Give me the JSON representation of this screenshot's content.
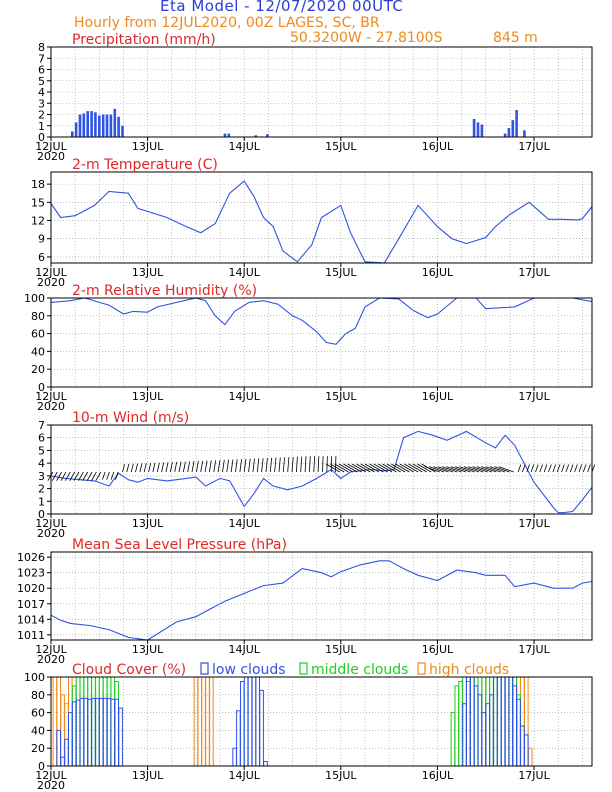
{
  "header": {
    "title": "Eta Model - 12/07/2020 00UTC",
    "subtitle": "Hourly from 12JUL2020, 00Z  LAGES, SC, BR",
    "coords": "50.3200W - 27.8100S",
    "elevation": "845  m"
  },
  "colors": {
    "title": "#2a3bd6",
    "orange": "#ee8a1c",
    "red": "#e02828",
    "blue": "#2e54e6",
    "green": "#22cc22",
    "black": "#000000"
  },
  "x_axis": {
    "range_days": [
      0,
      5.6
    ],
    "ticks": [
      {
        "day": 0,
        "label": "12JUL"
      },
      {
        "day": 1,
        "label": "13JUL"
      },
      {
        "day": 2,
        "label": "14JUL"
      },
      {
        "day": 3,
        "label": "15JUL"
      },
      {
        "day": 4,
        "label": "16JUL"
      },
      {
        "day": 5,
        "label": "17JUL"
      }
    ],
    "year": "2020"
  },
  "chart_data": [
    {
      "type": "bar",
      "title": "Precipitation (mm/h)",
      "ylim": [
        0,
        8
      ],
      "yticks": [
        0,
        1,
        2,
        3,
        4,
        5,
        6,
        7,
        8
      ],
      "x": [
        0.22,
        0.26,
        0.3,
        0.34,
        0.38,
        0.42,
        0.46,
        0.5,
        0.54,
        0.58,
        0.62,
        0.66,
        0.7,
        0.74,
        1.8,
        1.84,
        2.12,
        2.24,
        4.38,
        4.42,
        4.46,
        4.7,
        4.74,
        4.78,
        4.82,
        4.9
      ],
      "values": [
        0.5,
        1.3,
        2,
        2.1,
        2.3,
        2.3,
        2.2,
        1.9,
        2,
        2,
        2,
        2.5,
        1.8,
        1,
        0.3,
        0.3,
        0.15,
        0.25,
        1.6,
        1.3,
        1.1,
        0.3,
        0.8,
        1.5,
        2.4,
        0.6
      ]
    },
    {
      "type": "line",
      "title": "2-m Temperature (C)",
      "ylim": [
        5,
        20
      ],
      "yticks": [
        6,
        9,
        12,
        15,
        18
      ],
      "x": [
        0,
        0.1,
        0.25,
        0.45,
        0.6,
        0.8,
        0.9,
        1.2,
        1.4,
        1.55,
        1.7,
        1.85,
        2.0,
        2.1,
        2.2,
        2.3,
        2.4,
        2.55,
        2.7,
        2.8,
        3.0,
        3.1,
        3.25,
        3.45,
        3.6,
        3.8,
        4.0,
        4.15,
        4.3,
        4.5,
        4.6,
        4.75,
        4.85,
        4.95,
        5.05,
        5.15,
        5.3,
        5.45,
        5.5,
        5.6
      ],
      "values": [
        14.8,
        12.5,
        12.8,
        14.5,
        16.8,
        16.5,
        14,
        12.5,
        11,
        10,
        11.5,
        16.5,
        18.5,
        16,
        12.5,
        11,
        7,
        5.2,
        8,
        12.5,
        14.5,
        10,
        5.2,
        5,
        9,
        14.5,
        11,
        9,
        8.2,
        9.2,
        11,
        13,
        14,
        15,
        13.6,
        12.2,
        12.2,
        12.1,
        12.3,
        14.3
      ]
    },
    {
      "type": "line",
      "title": "2-m Relative Humidity (%)",
      "ylim": [
        0,
        100
      ],
      "yticks": [
        0,
        20,
        40,
        60,
        80,
        100
      ],
      "x": [
        0,
        0.2,
        0.35,
        0.5,
        0.6,
        0.75,
        0.85,
        1.0,
        1.1,
        1.5,
        1.6,
        1.7,
        1.8,
        1.9,
        2.05,
        2.2,
        2.35,
        2.5,
        2.6,
        2.75,
        2.85,
        2.95,
        3.05,
        3.15,
        3.25,
        3.4,
        3.6,
        3.75,
        3.9,
        4.0,
        4.2,
        4.4,
        4.5,
        4.8,
        5.0,
        5.4,
        5.55,
        5.6
      ],
      "values": [
        95,
        97,
        100,
        95,
        92,
        82,
        85,
        84,
        90,
        100,
        97,
        80,
        70,
        85,
        95,
        97,
        93,
        80,
        75,
        62,
        50,
        48,
        60,
        66,
        90,
        100,
        99,
        86,
        78,
        82,
        100,
        100,
        88,
        90,
        100,
        100,
        97,
        96
      ]
    },
    {
      "type": "line",
      "title": "10-m Wind (m/s)",
      "ylim": [
        0,
        7
      ],
      "yticks": [
        0,
        1,
        2,
        3,
        4,
        5,
        6,
        7
      ],
      "x": [
        0,
        0.15,
        0.3,
        0.45,
        0.6,
        0.7,
        0.8,
        0.9,
        1.0,
        1.2,
        1.4,
        1.5,
        1.6,
        1.75,
        1.85,
        2.0,
        2.1,
        2.2,
        2.3,
        2.45,
        2.6,
        2.75,
        2.9,
        3.0,
        3.1,
        3.3,
        3.45,
        3.55,
        3.65,
        3.8,
        3.95,
        4.1,
        4.3,
        4.5,
        4.6,
        4.7,
        4.8,
        5.0,
        5.2,
        5.25,
        5.3,
        5.4,
        5.5,
        5.6
      ],
      "values": [
        3,
        2.8,
        2.7,
        2.6,
        2.2,
        3.2,
        2.7,
        2.5,
        2.8,
        2.6,
        2.8,
        2.9,
        2.2,
        2.8,
        2.6,
        0.6,
        1.6,
        2.8,
        2.2,
        1.9,
        2.2,
        2.8,
        3.5,
        2.8,
        3.3,
        3.5,
        3.4,
        3.5,
        6,
        6.5,
        6.2,
        5.8,
        6.5,
        5.6,
        5.2,
        6.2,
        5.4,
        2.5,
        0.5,
        0.1,
        0.1,
        0.2,
        1.1,
        2.1
      ]
    },
    {
      "type": "line",
      "title": "Mean Sea Level Pressure (hPa)",
      "ylim": [
        1010,
        1027
      ],
      "yticks": [
        1011,
        1014,
        1017,
        1020,
        1023,
        1026
      ],
      "x": [
        0,
        0.1,
        0.2,
        0.4,
        0.6,
        0.8,
        1.0,
        1.3,
        1.5,
        1.65,
        1.8,
        2.0,
        2.2,
        2.4,
        2.6,
        2.8,
        2.9,
        3.0,
        3.2,
        3.4,
        3.5,
        3.65,
        3.8,
        4.0,
        4.2,
        4.4,
        4.5,
        4.7,
        4.8,
        5.0,
        5.2,
        5.4,
        5.5,
        5.6
      ],
      "values": [
        1014.8,
        1013.8,
        1013.2,
        1012.8,
        1012,
        1010.5,
        1010,
        1013.5,
        1014.5,
        1016,
        1017.5,
        1019,
        1020.5,
        1021,
        1023.8,
        1023,
        1022.2,
        1023.2,
        1024.5,
        1025.3,
        1025.3,
        1023.8,
        1022.5,
        1021.5,
        1023.5,
        1023,
        1022.5,
        1022.5,
        1020.3,
        1021,
        1020,
        1020,
        1021,
        1021.3
      ]
    },
    {
      "type": "bar",
      "title": "Cloud Cover (%)",
      "ylim": [
        0,
        100
      ],
      "yticks": [
        0,
        20,
        40,
        60,
        80,
        100
      ],
      "legend": [
        "low clouds",
        "middle clouds",
        "high clouds"
      ],
      "series": [
        {
          "name": "low clouds",
          "x": [
            0.08,
            0.12,
            0.16,
            0.2,
            0.24,
            0.28,
            0.32,
            0.36,
            0.4,
            0.44,
            0.48,
            0.52,
            0.56,
            0.6,
            0.64,
            0.68,
            0.72,
            1.9,
            1.94,
            1.98,
            2.02,
            2.06,
            2.1,
            2.14,
            2.18,
            2.22,
            4.28,
            4.32,
            4.36,
            4.4,
            4.44,
            4.48,
            4.52,
            4.56,
            4.6,
            4.64,
            4.68,
            4.72,
            4.76,
            4.8,
            4.84,
            4.88,
            4.92
          ],
          "values": [
            40,
            10,
            30,
            60,
            72,
            74,
            76,
            76,
            75,
            76,
            76,
            76,
            76,
            76,
            75,
            75,
            65,
            20,
            62,
            95,
            100,
            100,
            100,
            100,
            85,
            5,
            70,
            100,
            100,
            90,
            80,
            60,
            70,
            80,
            100,
            100,
            100,
            100,
            100,
            90,
            75,
            45,
            35
          ]
        },
        {
          "name": "middle clouds",
          "x": [
            0.24,
            0.28,
            0.32,
            0.36,
            0.4,
            0.44,
            0.48,
            0.52,
            0.56,
            0.6,
            0.64,
            0.68,
            4.16,
            4.2,
            4.24,
            4.28,
            4.32,
            4.36,
            4.4,
            4.44,
            4.48,
            4.52,
            4.56,
            4.6,
            4.64,
            4.68,
            4.72,
            4.76,
            4.8,
            4.84
          ],
          "values": [
            90,
            100,
            100,
            100,
            100,
            100,
            100,
            100,
            100,
            100,
            100,
            95,
            60,
            90,
            95,
            100,
            95,
            100,
            100,
            100,
            100,
            100,
            100,
            100,
            100,
            100,
            100,
            100,
            100,
            80
          ]
        },
        {
          "name": "high clouds",
          "x": [
            0.04,
            0.08,
            0.12,
            0.16,
            0.2,
            1.5,
            1.54,
            1.58,
            1.62,
            1.66,
            4.52,
            4.8,
            4.84,
            4.88,
            4.92,
            4.96
          ],
          "values": [
            100,
            100,
            80,
            70,
            100,
            100,
            100,
            100,
            100,
            100,
            100,
            100,
            100,
            100,
            100,
            20
          ]
        }
      ]
    }
  ]
}
